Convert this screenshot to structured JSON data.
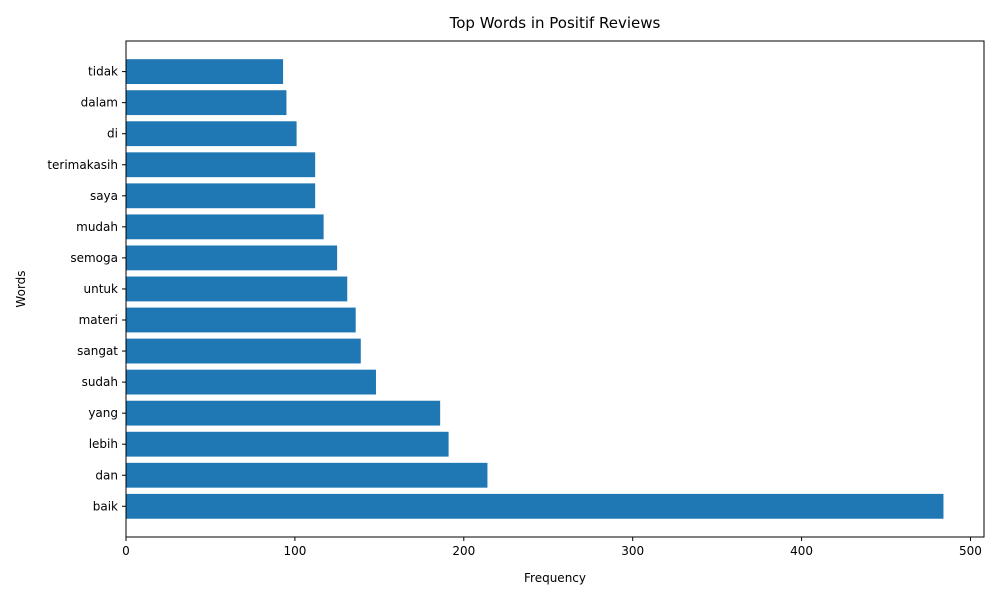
{
  "chart_data": {
    "type": "bar",
    "orientation": "horizontal",
    "title": "Top Words in Positif Reviews",
    "xlabel": "Frequency",
    "ylabel": "Words",
    "xlim": [
      0,
      508
    ],
    "xticks": [
      0,
      100,
      200,
      300,
      400,
      500
    ],
    "grid": false,
    "legend": "none",
    "bar_color": "#1f77b4",
    "categories": [
      "baik",
      "dan",
      "lebih",
      "yang",
      "sudah",
      "sangat",
      "materi",
      "untuk",
      "semoga",
      "mudah",
      "saya",
      "terimakasih",
      "di",
      "dalam",
      "tidak"
    ],
    "values": [
      484,
      214,
      191,
      186,
      148,
      139,
      136,
      131,
      125,
      117,
      112,
      112,
      101,
      95,
      93
    ]
  }
}
